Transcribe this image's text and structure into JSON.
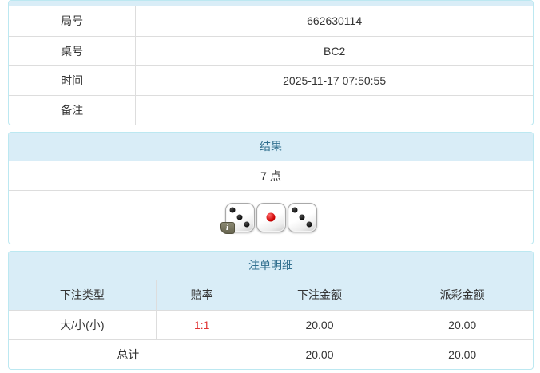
{
  "colors": {
    "panel_heading_bg": "#d9edf7",
    "panel_border": "#bce8f1",
    "panel_heading_text": "#31708f",
    "grid_line": "#dddddd",
    "body_text": "#333333",
    "odds_red": "#e03333"
  },
  "info_table": {
    "rows": [
      {
        "label": "局号",
        "value": "662630114"
      },
      {
        "label": "桌号",
        "value": "BC2"
      },
      {
        "label": "时间",
        "value": "2025-11-17 07:50:55"
      },
      {
        "label": "备注",
        "value": ""
      }
    ]
  },
  "result_panel": {
    "title": "结果",
    "points": "7 点",
    "dice": [
      3,
      1,
      3
    ]
  },
  "bets_panel": {
    "title": "注单明细",
    "columns": [
      "下注类型",
      "赔率",
      "下注金额",
      "派彩金额"
    ],
    "rows": [
      {
        "type": "大/小(小)",
        "odds": "1:1",
        "bet": "20.00",
        "payout": "20.00"
      }
    ],
    "total_label": "总计",
    "total_bet": "20.00",
    "total_payout": "20.00"
  },
  "icons": {
    "info_badge": "i"
  }
}
